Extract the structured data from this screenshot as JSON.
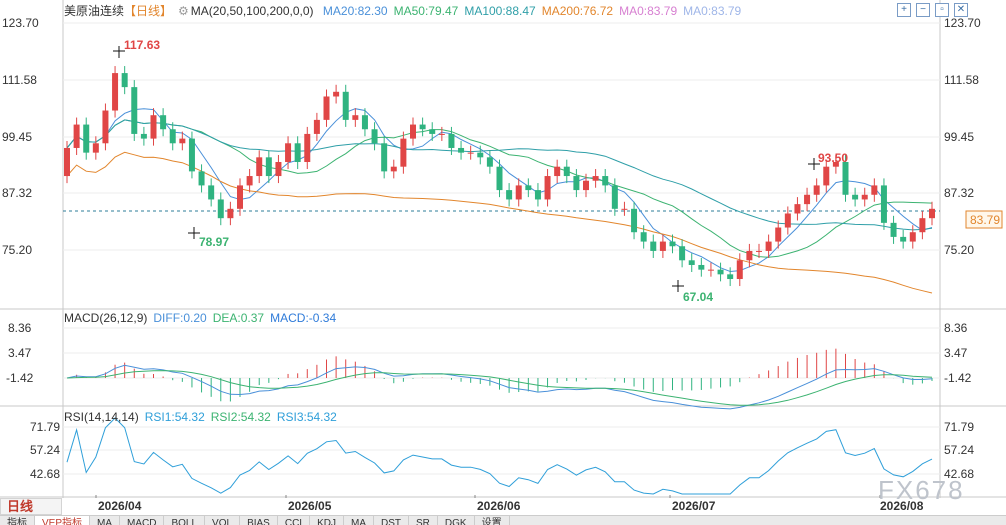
{
  "instrument": "美原油连续",
  "period": "【日线】",
  "main_indicator": {
    "params": "MA(20,50,100,200,0,0)",
    "items": [
      {
        "label": "MA20:82.30",
        "color": "#4a90d9"
      },
      {
        "label": "MA50:79.47",
        "color": "#3cb371"
      },
      {
        "label": "MA100:88.47",
        "color": "#2f9fa8"
      },
      {
        "label": "MA200:76.72",
        "color": "#e2862d"
      },
      {
        "label": "MA0:83.79",
        "color": "#d77fd1"
      },
      {
        "label": "MA0:83.79",
        "color": "#9fb6e8"
      }
    ]
  },
  "price_axis": [
    "123.70",
    "111.58",
    "99.45",
    "87.32",
    "75.20"
  ],
  "current_price": "83.79",
  "annotations": {
    "high": "117.63",
    "low_left": "78.97",
    "high_right": "93.50",
    "low": "67.04"
  },
  "macd": {
    "params": "MACD(26,12,9)",
    "diff": "DIFF:0.20",
    "dea": "DEA:0.37",
    "macd": "MACD:-0.34",
    "axis": [
      "8.36",
      "3.47",
      "-1.42"
    ]
  },
  "rsi": {
    "params": "RSI(14,14,14)",
    "rsi1": "RSI1:54.32",
    "rsi2": "RSI2:54.32",
    "rsi3": "RSI3:54.32",
    "axis": [
      "71.79",
      "57.24",
      "42.68"
    ]
  },
  "date_labels": [
    "2026/04",
    "2026/05",
    "2026/06",
    "2026/07",
    "2026/08"
  ],
  "bottom": {
    "period_tab": "日线",
    "tabs": [
      "指标",
      "VEP指标",
      "MA",
      "MACD",
      "BOLL",
      "VOL",
      "BIAS",
      "CCI",
      "KDJ",
      "MA",
      "DST",
      "SR",
      "DGK",
      "设置"
    ]
  },
  "window_buttons": [
    "+",
    "−",
    "▫",
    "✕"
  ],
  "watermark": "FX678",
  "chart_data": {
    "type": "candlestick",
    "series_daily": {
      "open": [
        91,
        97,
        102,
        96,
        98,
        105,
        113,
        110,
        100,
        99,
        104,
        101,
        98,
        99,
        92,
        89,
        86,
        82,
        84,
        89,
        91,
        95,
        91,
        94,
        98,
        94,
        100,
        103,
        108,
        109,
        103,
        104,
        101,
        98,
        92,
        93,
        99,
        102,
        101,
        100,
        100,
        97,
        96,
        96,
        95,
        93,
        88,
        86,
        89,
        88,
        86,
        91,
        93,
        91,
        88,
        90,
        91,
        89,
        84,
        84,
        79,
        77,
        75,
        77,
        76,
        73,
        72,
        71,
        71,
        70,
        69,
        73,
        75,
        75,
        77,
        80,
        83,
        85,
        87,
        89,
        93,
        94,
        87,
        86,
        87,
        89,
        81,
        78,
        77,
        79,
        82
      ],
      "close": [
        97,
        102,
        96,
        98,
        105,
        113,
        110,
        100,
        99,
        104,
        101,
        98,
        99,
        92,
        89,
        86,
        82,
        84,
        89,
        91,
        95,
        91,
        94,
        98,
        94,
        100,
        103,
        108,
        109,
        103,
        104,
        101,
        98,
        92,
        93,
        99,
        102,
        101,
        100,
        100,
        97,
        96,
        96,
        95,
        93,
        88,
        86,
        89,
        88,
        86,
        91,
        93,
        91,
        88,
        90,
        91,
        89,
        84,
        84,
        79,
        77,
        75,
        77,
        76,
        73,
        72,
        71,
        71,
        70,
        69,
        73,
        75,
        75,
        77,
        80,
        83,
        85,
        87,
        89,
        93,
        94,
        87,
        86,
        87,
        89,
        81,
        78,
        77,
        79,
        82,
        84
      ],
      "note": "values in price units"
    },
    "ma20_last": 82.3,
    "ma50_last": 79.47,
    "ma100_last": 88.47,
    "ma200_last": 76.72
  }
}
